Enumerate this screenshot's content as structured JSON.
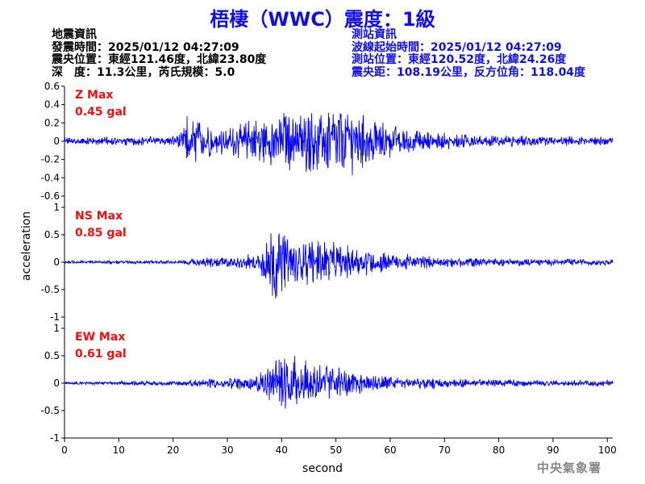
{
  "header": {
    "title": "梧棲（WWC）震度：1級"
  },
  "quake_info": {
    "heading": "地震資訊",
    "time": "發震時間：2025/01/12 04:27:09",
    "epicenter": "震央位置：東經121.46度，北緯23.80度",
    "depth_mag": "深　度：11.3公里，芮氏規模：5.0"
  },
  "station_info": {
    "heading": "測站資訊",
    "wave_start": "波線起始時間：2025/01/12 04:27:09",
    "location": "測站位置：東經120.52度，北緯24.26度",
    "distance": "震央距：108.19公里，反方位角：118.04度"
  },
  "footer": {
    "watermark": "中央氣象署"
  },
  "colors": {
    "trace": "#0000ff",
    "label": "#ee1111",
    "title": "#1010e0"
  },
  "chart_data": {
    "type": "line",
    "xlabel": "second",
    "ylabel": "acceleration",
    "xlim": [
      0,
      101
    ],
    "xticks": [
      "0",
      "10",
      "20",
      "30",
      "40",
      "50",
      "60",
      "70",
      "80",
      "90",
      "100"
    ],
    "panels": [
      {
        "name": "Z Max",
        "max_label": "0.45 gal",
        "ylim": [
          -0.6,
          0.6
        ],
        "yticks": [
          "0.6",
          "0.4",
          "0.2",
          "0",
          "-0.2",
          "-0.4",
          "-0.6"
        ],
        "envelope": [
          [
            0,
            0.05
          ],
          [
            20,
            0.06
          ],
          [
            21.5,
            0.12
          ],
          [
            22.5,
            0.35
          ],
          [
            25,
            0.28
          ],
          [
            28,
            0.15
          ],
          [
            30,
            0.2
          ],
          [
            35,
            0.3
          ],
          [
            40,
            0.38
          ],
          [
            47,
            0.4
          ],
          [
            51,
            0.45
          ],
          [
            55,
            0.35
          ],
          [
            58,
            0.25
          ],
          [
            62,
            0.18
          ],
          [
            68,
            0.12
          ],
          [
            75,
            0.08
          ],
          [
            90,
            0.06
          ],
          [
            101,
            0.06
          ]
        ]
      },
      {
        "name": "NS Max",
        "max_label": "0.85 gal",
        "ylim": [
          -1,
          1
        ],
        "yticks": [
          "1",
          "0.5",
          "0",
          "-0.5",
          "-1"
        ],
        "envelope": [
          [
            0,
            0.03
          ],
          [
            22,
            0.04
          ],
          [
            24,
            0.1
          ],
          [
            30,
            0.12
          ],
          [
            35,
            0.18
          ],
          [
            37,
            0.4
          ],
          [
            38.5,
            0.85
          ],
          [
            40,
            0.6
          ],
          [
            44,
            0.5
          ],
          [
            48,
            0.45
          ],
          [
            52,
            0.35
          ],
          [
            56,
            0.25
          ],
          [
            60,
            0.2
          ],
          [
            68,
            0.12
          ],
          [
            80,
            0.08
          ],
          [
            101,
            0.06
          ]
        ]
      },
      {
        "name": "EW Max",
        "max_label": "0.61 gal",
        "ylim": [
          -1,
          1
        ],
        "yticks": [
          "1",
          "0.5",
          "0",
          "-0.5",
          "-1"
        ],
        "envelope": [
          [
            0,
            0.03
          ],
          [
            22,
            0.05
          ],
          [
            26,
            0.1
          ],
          [
            30,
            0.12
          ],
          [
            35,
            0.15
          ],
          [
            37,
            0.35
          ],
          [
            39,
            0.55
          ],
          [
            42,
            0.61
          ],
          [
            46,
            0.45
          ],
          [
            50,
            0.35
          ],
          [
            55,
            0.22
          ],
          [
            60,
            0.15
          ],
          [
            70,
            0.1
          ],
          [
            85,
            0.07
          ],
          [
            101,
            0.06
          ]
        ]
      }
    ]
  }
}
